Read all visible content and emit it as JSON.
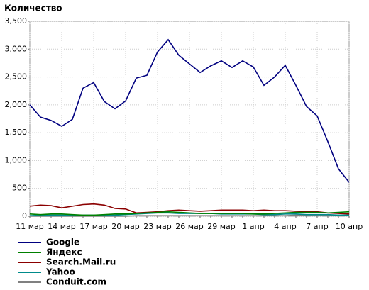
{
  "chart_data": {
    "type": "line",
    "title": "Количество",
    "categories": [
      "11 мар",
      null,
      null,
      "14 мар",
      null,
      null,
      "17 мар",
      null,
      null,
      "20 мар",
      null,
      null,
      "23 мар",
      null,
      null,
      "26 мар",
      null,
      null,
      "29 мар",
      null,
      null,
      "1 апр",
      null,
      null,
      "4 апр",
      null,
      null,
      "7 апр",
      null,
      null,
      "10 апр"
    ],
    "series": [
      {
        "name": "Google",
        "color": "#000080",
        "values": [
          2000,
          1780,
          1720,
          1615,
          1740,
          2300,
          2400,
          2060,
          1930,
          2070,
          2480,
          2530,
          2950,
          3170,
          2890,
          2735,
          2580,
          2700,
          2790,
          2670,
          2790,
          2680,
          2350,
          2500,
          2710,
          2350,
          1970,
          1800,
          1340,
          850,
          610
        ]
      },
      {
        "name": "Яндекс",
        "color": "#008000",
        "values": [
          40,
          30,
          40,
          40,
          30,
          20,
          20,
          30,
          40,
          40,
          50,
          60,
          70,
          80,
          70,
          60,
          50,
          50,
          50,
          50,
          50,
          40,
          40,
          50,
          60,
          70,
          70,
          70,
          60,
          70,
          80
        ]
      },
      {
        "name": "Search.Mail.ru",
        "color": "#8b0000",
        "values": [
          180,
          200,
          190,
          150,
          180,
          210,
          220,
          200,
          140,
          130,
          60,
          70,
          80,
          100,
          110,
          100,
          90,
          100,
          110,
          110,
          110,
          100,
          110,
          100,
          100,
          90,
          80,
          80,
          60,
          50,
          40
        ]
      },
      {
        "name": "Yahoo",
        "color": "#008b8b",
        "values": [
          10,
          20,
          20,
          20,
          20,
          20,
          20,
          20,
          20,
          30,
          40,
          50,
          60,
          60,
          50,
          50,
          50,
          50,
          40,
          40,
          40,
          40,
          30,
          30,
          40,
          40,
          30,
          30,
          30,
          20,
          20
        ]
      },
      {
        "name": "Conduit.com",
        "color": "#808080",
        "values": [
          0,
          0,
          0,
          0,
          0,
          0,
          0,
          0,
          0,
          0,
          10,
          10,
          10,
          10,
          10,
          10,
          10,
          10,
          10,
          10,
          10,
          10,
          10,
          10,
          10,
          20,
          20,
          20,
          20,
          20,
          20
        ]
      }
    ],
    "ylim": [
      0,
      3500
    ],
    "yticks": [
      0,
      500,
      {
        "value": 1000,
        "label": "1,000"
      },
      {
        "value": 1500,
        "label": "1,500"
      },
      {
        "value": 2000,
        "label": "2,000"
      },
      {
        "value": 2500,
        "label": "2,500"
      },
      {
        "value": 3000,
        "label": "3,000"
      },
      {
        "value": 3500,
        "label": "3,500"
      }
    ],
    "grid": true
  }
}
